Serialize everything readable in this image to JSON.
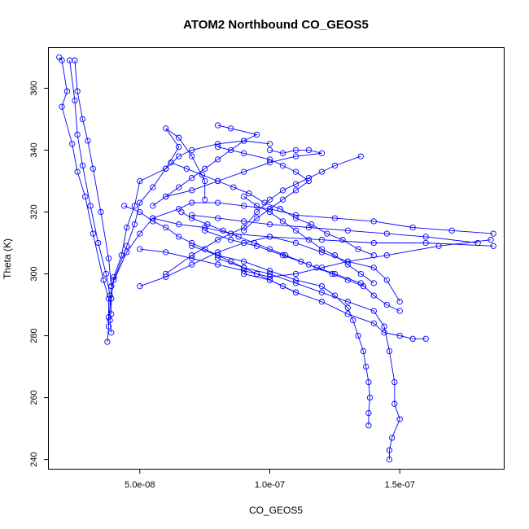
{
  "chart_data": {
    "type": "scatter",
    "title": "ATOM2 Northbound CO_GEOS5",
    "xlabel": "CO_GEOS5",
    "ylabel": "Theta (K)",
    "xlim": [
      1.5e-08,
      1.9e-07
    ],
    "ylim": [
      237,
      373
    ],
    "x_ticks": [
      5e-08,
      1e-07,
      1.5e-07
    ],
    "x_tick_labels": [
      "5.0e-08",
      "1.0e-07",
      "1.5e-07"
    ],
    "y_ticks": [
      240,
      260,
      280,
      300,
      320,
      340,
      360
    ],
    "y_tick_labels": [
      "240",
      "260",
      "280",
      "300",
      "320",
      "340",
      "360"
    ],
    "grid": false,
    "legend": "none",
    "colors": {
      "series": "#0000ff",
      "axes": "#000000",
      "background": "#ffffff"
    },
    "series": [
      {
        "points": [
          [
            1.9e-08,
            370
          ],
          [
            2e-08,
            369
          ],
          [
            2.2e-08,
            359
          ],
          [
            2e-08,
            354
          ],
          [
            2.4e-08,
            342
          ],
          [
            2.6e-08,
            333
          ],
          [
            2.9e-08,
            325
          ],
          [
            3.2e-08,
            313
          ],
          [
            3.6e-08,
            298
          ],
          [
            3.8e-08,
            292
          ],
          [
            3.8e-08,
            283
          ],
          [
            3.75e-08,
            278
          ]
        ]
      },
      {
        "points": [
          [
            2.5e-08,
            369
          ],
          [
            2.6e-08,
            359
          ],
          [
            2.8e-08,
            350
          ],
          [
            3e-08,
            343
          ],
          [
            3.2e-08,
            334
          ],
          [
            3.5e-08,
            320
          ],
          [
            3.8e-08,
            305
          ],
          [
            3.9e-08,
            296
          ],
          [
            3.9e-08,
            287
          ]
        ]
      },
      {
        "points": [
          [
            2.3e-08,
            369
          ],
          [
            2.5e-08,
            356
          ],
          [
            2.6e-08,
            345
          ],
          [
            2.8e-08,
            335
          ],
          [
            3.1e-08,
            322
          ],
          [
            3.4e-08,
            310
          ],
          [
            3.7e-08,
            300
          ],
          [
            3.85e-08,
            293
          ],
          [
            3.85e-08,
            285
          ],
          [
            3.9e-08,
            281
          ]
        ]
      },
      {
        "points": [
          [
            3.8e-08,
            286
          ],
          [
            3.9e-08,
            292
          ],
          [
            4e-08,
            299
          ],
          [
            4.3e-08,
            306
          ],
          [
            4.5e-08,
            315
          ],
          [
            4.8e-08,
            322
          ],
          [
            5e-08,
            330
          ],
          [
            6e-08,
            334
          ],
          [
            6.5e-08,
            338
          ],
          [
            7e-08,
            340
          ],
          [
            8e-08,
            342
          ],
          [
            9e-08,
            343
          ],
          [
            1e-07,
            342
          ]
        ]
      },
      {
        "points": [
          [
            4e-08,
            298
          ],
          [
            4.5e-08,
            309
          ],
          [
            4.8e-08,
            316
          ],
          [
            5e-08,
            323
          ],
          [
            5.5e-08,
            328
          ],
          [
            6e-08,
            334
          ],
          [
            6.5e-08,
            341
          ],
          [
            6e-08,
            347
          ],
          [
            6.5e-08,
            344
          ],
          [
            7e-08,
            338
          ],
          [
            7.5e-08,
            330
          ],
          [
            7.5e-08,
            324
          ]
        ]
      },
      {
        "points": [
          [
            3.9e-08,
            296
          ],
          [
            4.5e-08,
            307
          ],
          [
            5e-08,
            313
          ],
          [
            5.5e-08,
            318
          ],
          [
            6.5e-08,
            321
          ],
          [
            7e-08,
            323
          ],
          [
            8e-08,
            323
          ],
          [
            9e-08,
            322
          ],
          [
            1e-07,
            321
          ],
          [
            1.1e-07,
            319
          ],
          [
            1.25e-07,
            318
          ],
          [
            1.4e-07,
            317
          ],
          [
            1.55e-07,
            315
          ],
          [
            1.7e-07,
            314
          ],
          [
            1.86e-07,
            313
          ]
        ]
      },
      {
        "points": [
          [
            1.86e-07,
            309
          ],
          [
            1.6e-07,
            310
          ],
          [
            1.4e-07,
            310
          ],
          [
            1.2e-07,
            311
          ],
          [
            1e-07,
            312
          ],
          [
            8.5e-08,
            313
          ],
          [
            7.5e-08,
            315
          ],
          [
            6.5e-08,
            316
          ],
          [
            5.5e-08,
            318
          ]
        ]
      },
      {
        "points": [
          [
            1.85e-07,
            311
          ],
          [
            1.65e-07,
            309
          ],
          [
            1.45e-07,
            306
          ],
          [
            1.3e-07,
            304
          ],
          [
            1.2e-07,
            302
          ],
          [
            1.1e-07,
            300
          ],
          [
            1e-07,
            299
          ],
          [
            9e-08,
            301
          ],
          [
            8e-08,
            303
          ],
          [
            7e-08,
            305
          ],
          [
            6e-08,
            307
          ],
          [
            5e-08,
            308
          ]
        ]
      },
      {
        "points": [
          [
            1.8e-07,
            310
          ],
          [
            1.6e-07,
            312
          ],
          [
            1.45e-07,
            313
          ],
          [
            1.3e-07,
            314
          ],
          [
            1.15e-07,
            315
          ],
          [
            1e-07,
            316
          ],
          [
            9e-08,
            317
          ],
          [
            8e-08,
            318
          ],
          [
            7e-08,
            319
          ]
        ]
      },
      {
        "points": [
          [
            5e-08,
            296
          ],
          [
            6e-08,
            299
          ],
          [
            7e-08,
            303
          ],
          [
            8e-08,
            307
          ],
          [
            9e-08,
            310
          ],
          [
            1e-07,
            312
          ],
          [
            1.1e-07,
            310
          ],
          [
            1.2e-07,
            307
          ],
          [
            1.3e-07,
            304
          ],
          [
            1.4e-07,
            302
          ],
          [
            1.45e-07,
            298
          ],
          [
            1.5e-07,
            291
          ]
        ]
      },
      {
        "points": [
          [
            6e-08,
            300
          ],
          [
            7e-08,
            306
          ],
          [
            8e-08,
            311
          ],
          [
            9e-08,
            315
          ],
          [
            9.5e-08,
            320
          ],
          [
            1e-07,
            324
          ],
          [
            1.05e-07,
            327
          ],
          [
            1.1e-07,
            329
          ],
          [
            1.15e-07,
            331
          ],
          [
            1.2e-07,
            333
          ],
          [
            1.25e-07,
            335
          ],
          [
            1.35e-07,
            338
          ]
        ]
      },
      {
        "points": [
          [
            7e-08,
            309
          ],
          [
            8e-08,
            306
          ],
          [
            9e-08,
            304
          ],
          [
            1e-07,
            301
          ],
          [
            1.1e-07,
            298
          ],
          [
            1.2e-07,
            296
          ],
          [
            1.25e-07,
            293
          ],
          [
            1.3e-07,
            289
          ],
          [
            1.32e-07,
            285
          ],
          [
            1.34e-07,
            280
          ],
          [
            1.36e-07,
            275
          ],
          [
            1.37e-07,
            270
          ],
          [
            1.38e-07,
            265
          ],
          [
            1.385e-07,
            260
          ],
          [
            1.38e-07,
            255
          ],
          [
            1.38e-07,
            251
          ]
        ]
      },
      {
        "points": [
          [
            8e-08,
            305
          ],
          [
            9e-08,
            302
          ],
          [
            1e-07,
            300
          ],
          [
            1.1e-07,
            297
          ],
          [
            1.2e-07,
            294
          ],
          [
            1.3e-07,
            291
          ],
          [
            1.4e-07,
            288
          ],
          [
            1.44e-07,
            283
          ],
          [
            1.46e-07,
            275
          ],
          [
            1.48e-07,
            265
          ],
          [
            1.48e-07,
            258
          ],
          [
            1.5e-07,
            253
          ],
          [
            1.47e-07,
            247
          ],
          [
            1.46e-07,
            243
          ],
          [
            1.46e-07,
            240
          ]
        ]
      },
      {
        "points": [
          [
            9e-08,
            300
          ],
          [
            1e-07,
            298
          ],
          [
            1.1e-07,
            294
          ],
          [
            1.2e-07,
            291
          ],
          [
            1.3e-07,
            287
          ],
          [
            1.4e-07,
            284
          ],
          [
            1.44e-07,
            281
          ],
          [
            1.5e-07,
            280
          ],
          [
            1.55e-07,
            279
          ],
          [
            1.6e-07,
            279
          ]
        ]
      },
      {
        "points": [
          [
            7.5e-08,
            314
          ],
          [
            8.5e-08,
            311
          ],
          [
            9.5e-08,
            309
          ],
          [
            1.05e-07,
            306
          ],
          [
            1.15e-07,
            303
          ],
          [
            1.25e-07,
            300
          ],
          [
            1.35e-07,
            297
          ],
          [
            1.4e-07,
            293
          ],
          [
            1.45e-07,
            290
          ],
          [
            1.5e-07,
            288
          ]
        ]
      },
      {
        "points": [
          [
            5.5e-08,
            322
          ],
          [
            6e-08,
            325
          ],
          [
            6.5e-08,
            328
          ],
          [
            7e-08,
            331
          ],
          [
            7.5e-08,
            334
          ],
          [
            8e-08,
            337
          ],
          [
            8.5e-08,
            340
          ],
          [
            9e-08,
            343
          ],
          [
            9.5e-08,
            345
          ],
          [
            8.5e-08,
            347
          ],
          [
            8e-08,
            348
          ]
        ]
      },
      {
        "points": [
          [
            8e-08,
            341
          ],
          [
            9e-08,
            339
          ],
          [
            1e-07,
            337
          ],
          [
            1.05e-07,
            335
          ],
          [
            1.1e-07,
            333
          ],
          [
            1.15e-07,
            330
          ],
          [
            1.1e-07,
            327
          ],
          [
            1.05e-07,
            324
          ],
          [
            1e-07,
            321
          ],
          [
            9.5e-08,
            318
          ],
          [
            9e-08,
            314
          ]
        ]
      },
      {
        "points": [
          [
            1e-07,
            340
          ],
          [
            1.05e-07,
            339
          ],
          [
            1.1e-07,
            340
          ],
          [
            1.15e-07,
            340
          ],
          [
            1.2e-07,
            339
          ],
          [
            1.1e-07,
            338
          ],
          [
            1e-07,
            336
          ],
          [
            9e-08,
            333
          ],
          [
            8e-08,
            330
          ],
          [
            7e-08,
            327
          ],
          [
            6e-08,
            325
          ]
        ]
      },
      {
        "points": [
          [
            4.4e-08,
            322
          ],
          [
            5e-08,
            320
          ],
          [
            5.5e-08,
            317
          ],
          [
            6e-08,
            315
          ],
          [
            6.5e-08,
            312
          ],
          [
            7e-08,
            310
          ],
          [
            7.5e-08,
            308
          ],
          [
            8e-08,
            306
          ],
          [
            8.5e-08,
            304
          ],
          [
            9e-08,
            302
          ],
          [
            9.5e-08,
            300
          ],
          [
            1e-07,
            298
          ],
          [
            1.05e-07,
            296
          ],
          [
            1.1e-07,
            294
          ]
        ]
      },
      {
        "points": [
          [
            6.6e-08,
            320
          ],
          [
            7e-08,
            318
          ],
          [
            7.6e-08,
            316
          ],
          [
            8.2e-08,
            314
          ],
          [
            8.8e-08,
            312
          ],
          [
            9.4e-08,
            310
          ],
          [
            1e-07,
            308
          ],
          [
            1.06e-07,
            306
          ],
          [
            1.12e-07,
            304
          ],
          [
            1.18e-07,
            302
          ],
          [
            1.24e-07,
            300
          ],
          [
            1.3e-07,
            298
          ],
          [
            1.36e-07,
            296
          ]
        ]
      },
      {
        "points": [
          [
            9e-08,
            325
          ],
          [
            9.5e-08,
            322
          ],
          [
            1e-07,
            320
          ],
          [
            1.05e-07,
            317
          ],
          [
            1.1e-07,
            314
          ],
          [
            1.15e-07,
            311
          ],
          [
            1.2e-07,
            308
          ],
          [
            1.25e-07,
            306
          ],
          [
            1.3e-07,
            303
          ],
          [
            1.35e-07,
            300
          ],
          [
            1.4e-07,
            297
          ]
        ]
      },
      {
        "points": [
          [
            6.2e-08,
            336
          ],
          [
            6.8e-08,
            334
          ],
          [
            7.4e-08,
            332
          ],
          [
            8e-08,
            330
          ],
          [
            8.6e-08,
            328
          ],
          [
            9.2e-08,
            326
          ],
          [
            9.8e-08,
            323
          ],
          [
            1.04e-07,
            321
          ],
          [
            1.1e-07,
            318
          ],
          [
            1.16e-07,
            316
          ],
          [
            1.22e-07,
            313
          ],
          [
            1.28e-07,
            311
          ],
          [
            1.34e-07,
            308
          ],
          [
            1.4e-07,
            306
          ]
        ]
      }
    ]
  }
}
